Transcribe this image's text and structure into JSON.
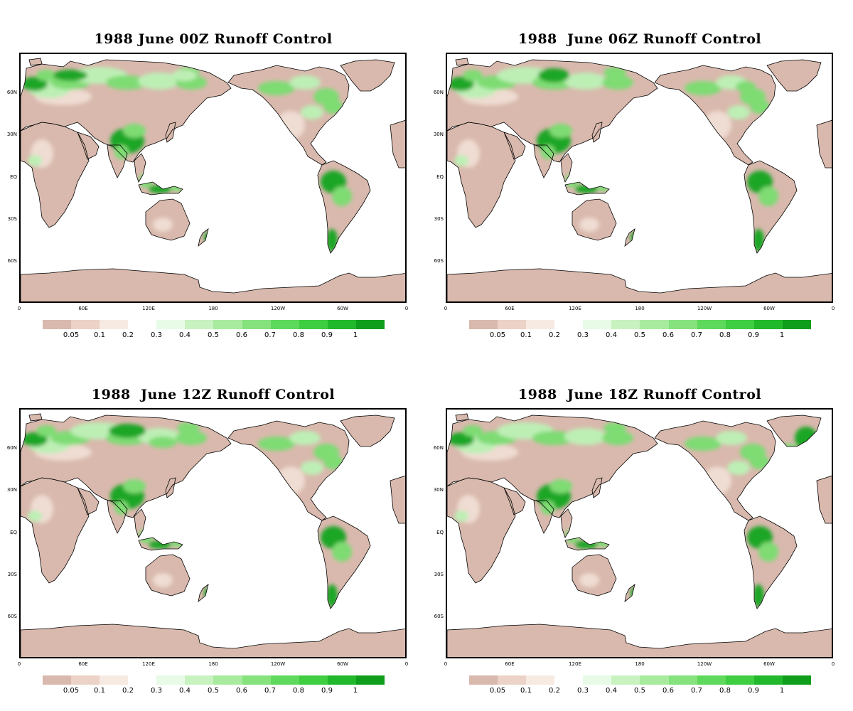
{
  "panels": [
    {
      "title": "1988 June 00Z Runoff Control",
      "variant": 0
    },
    {
      "title": "1988  June 06Z Runoff Control",
      "variant": 1
    },
    {
      "title": "1988  June 12Z Runoff Control",
      "variant": 2
    },
    {
      "title": "1988  June 18Z Runoff Control",
      "variant": 3
    }
  ],
  "lat_ticks": [
    "60N",
    "30N",
    "EQ",
    "30S",
    "60S"
  ],
  "lon_ticks": [
    "0",
    "60E",
    "120E",
    "180",
    "120W",
    "60W",
    "0"
  ],
  "colorbar": {
    "labels": [
      "0.05",
      "0.1",
      "0.2",
      "0.3",
      "0.4",
      "0.5",
      "0.6",
      "0.7",
      "0.8",
      "0.9",
      "1"
    ],
    "colors": [
      "#d9b9ad",
      "#ecd2c7",
      "#f7eae2",
      "#ffffff",
      "#e8fbe6",
      "#c8f2c0",
      "#a8eb9e",
      "#86e27d",
      "#5fd95b",
      "#3fcd42",
      "#22b82c",
      "#0f9e1c"
    ]
  },
  "colors": {
    "land_dry": "#d9b9ad",
    "land_light": "#efdcd2",
    "green_light": "#bdefb5",
    "green_mid": "#7edc73",
    "green_dark": "#1aa627",
    "coast": "#000000",
    "ocean": "#ffffff"
  }
}
